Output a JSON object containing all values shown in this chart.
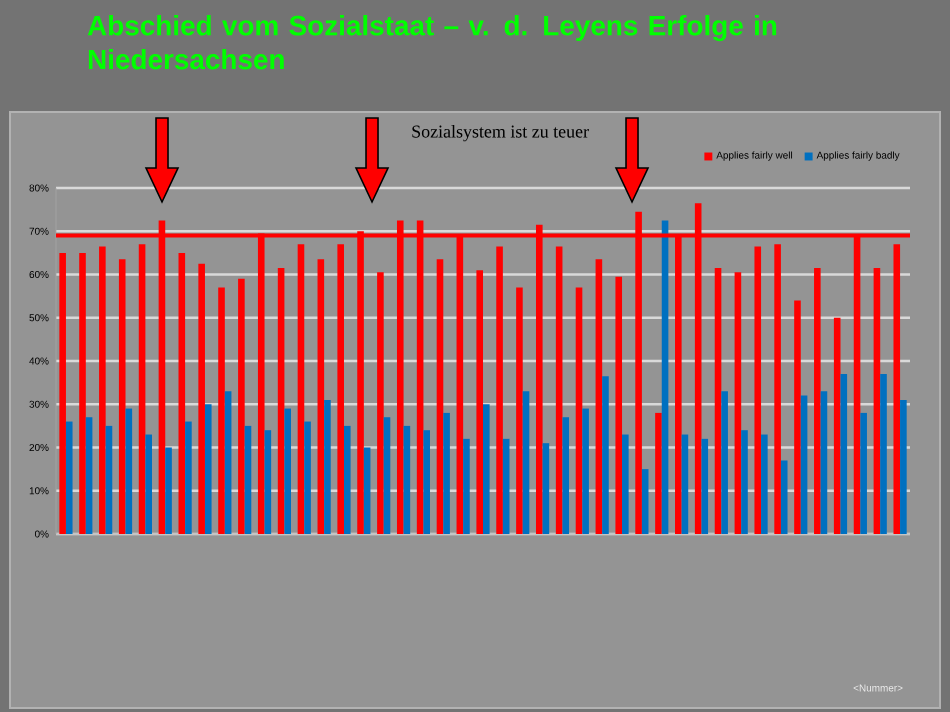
{
  "chart_data": {
    "type": "bar",
    "title": "Abschied vom Sozialstaat – v. d. Leyens Erfolge in Niedersachsen",
    "subtitle": "Sozialsystem ist zu teuer",
    "annotations": [
      "<Nummer>"
    ],
    "categories": [
      null,
      null,
      null,
      null,
      null,
      null,
      null,
      null,
      null,
      null,
      null,
      null,
      null,
      null,
      null,
      null,
      null,
      null,
      null,
      null,
      null,
      null,
      null,
      null,
      null,
      null,
      null,
      null,
      null,
      null,
      null,
      null,
      null,
      null,
      null,
      null,
      null,
      null,
      null,
      null,
      null,
      null,
      null
    ],
    "series": [
      {
        "name": "Applies fairly well",
        "color": "#ff0000",
        "values": [
          65,
          65,
          66.5,
          63.5,
          67,
          72.5,
          65,
          62.5,
          57,
          59,
          69.5,
          61.5,
          67,
          63.5,
          67,
          70,
          60.5,
          72.5,
          72.5,
          63.5,
          69,
          61,
          66.5,
          57,
          71.5,
          66.5,
          57,
          63.5,
          59.5,
          74.5,
          28,
          69,
          76.5,
          61.5,
          60.5,
          66.5,
          67,
          54,
          61.5,
          50,
          69,
          61.5,
          67
        ]
      },
      {
        "name": "Applies fairly badly",
        "color": "#0070c0",
        "values": [
          26,
          27,
          25,
          29,
          23,
          20,
          26,
          30,
          33,
          25,
          24,
          29,
          26,
          31,
          25,
          20,
          27,
          25,
          24,
          28,
          22,
          30,
          22,
          33,
          21,
          27,
          29,
          36.5,
          23,
          15,
          72.5,
          23,
          22,
          33,
          24,
          23,
          17,
          32,
          33,
          37,
          28,
          37,
          31
        ]
      }
    ],
    "ylim": [
      0,
      80
    ],
    "yticks": [
      {
        "value": 0,
        "label": "0%"
      },
      {
        "value": 10,
        "label": "10%"
      },
      {
        "value": 20,
        "label": "20%"
      },
      {
        "value": 30,
        "label": "30%"
      },
      {
        "value": 40,
        "label": "40%"
      },
      {
        "value": 50,
        "label": "50%"
      },
      {
        "value": 60,
        "label": "60%"
      },
      {
        "value": 70,
        "label": "70%"
      },
      {
        "value": 80,
        "label": "80%"
      }
    ],
    "grid": "y",
    "legend": "top right",
    "ref_lines": [
      {
        "axis": "y",
        "value": 69,
        "color": "#ff0000"
      }
    ]
  }
}
